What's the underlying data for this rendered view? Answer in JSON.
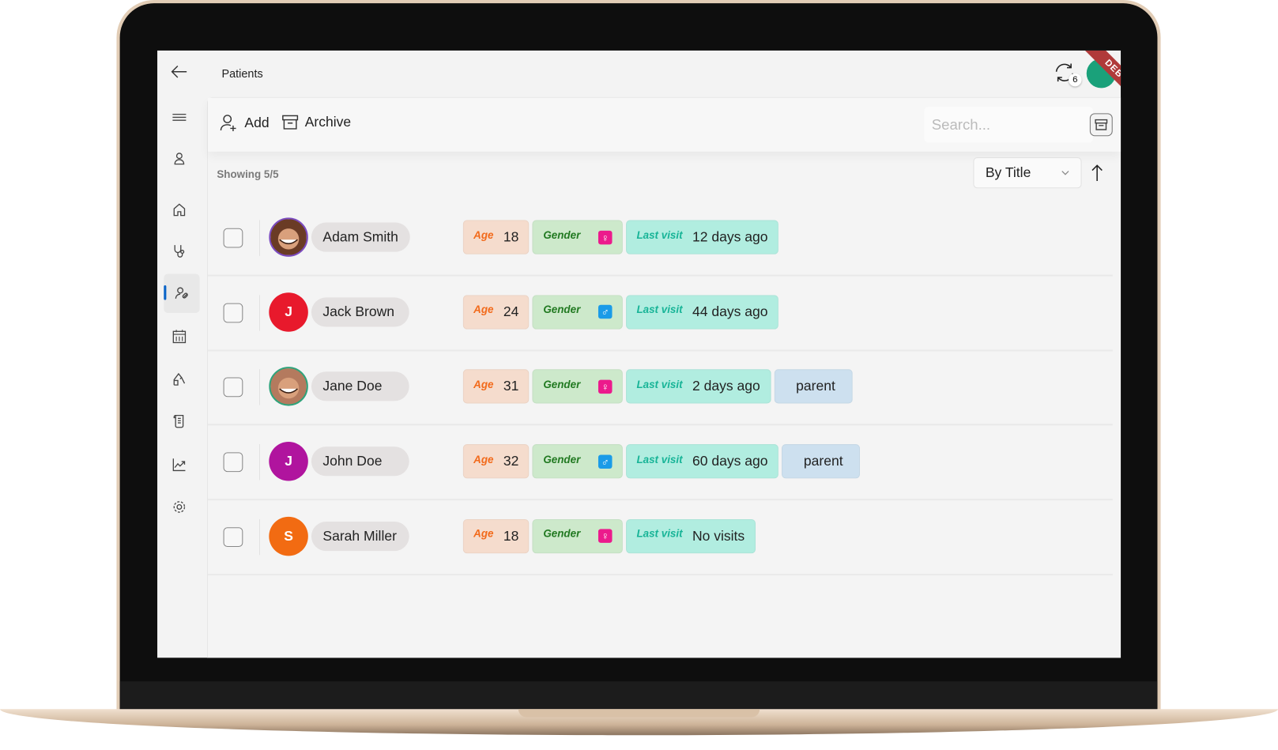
{
  "header": {
    "title": "Patients",
    "sync_count": "6",
    "debug_banner": "DEBUG"
  },
  "sidebar": {
    "items": [
      {
        "name": "menu",
        "icon": "menu-icon"
      },
      {
        "name": "profile",
        "icon": "person-icon"
      },
      {
        "name": "home",
        "icon": "home-icon"
      },
      {
        "name": "doctors",
        "icon": "stethoscope-icon"
      },
      {
        "name": "patients",
        "icon": "patients-icon",
        "active": true
      },
      {
        "name": "calendar",
        "icon": "calendar-icon"
      },
      {
        "name": "labwork",
        "icon": "lab-icon"
      },
      {
        "name": "prescriptions",
        "icon": "scroll-icon"
      },
      {
        "name": "statistics",
        "icon": "chart-icon"
      },
      {
        "name": "settings",
        "icon": "gear-icon"
      }
    ],
    "active_color": "#0a64c8"
  },
  "toolbar": {
    "add_label": "Add",
    "archive_label": "Archive",
    "search_placeholder": "Search..."
  },
  "list": {
    "showing": "Showing 5/5",
    "sort_by": "By Title",
    "age_label": "Age",
    "gender_label": "Gender",
    "last_visit_label": "Last visit",
    "rows": [
      {
        "name": "Adam Smith",
        "initial": "",
        "avatar": "photo",
        "avatar_color": "#6a3b25",
        "ring": "#7b4bbf",
        "age": "18",
        "gender": "female",
        "last_visit": "12 days ago",
        "tag": ""
      },
      {
        "name": "Jack Brown",
        "initial": "J",
        "avatar": "initial",
        "avatar_color": "#e8192c",
        "age": "24",
        "gender": "male",
        "last_visit": "44 days ago",
        "tag": ""
      },
      {
        "name": "Jane Doe",
        "initial": "",
        "avatar": "photo",
        "avatar_color": "#b47a5e",
        "ring": "#2ea37b",
        "age": "31",
        "gender": "female",
        "last_visit": "2 days ago",
        "tag": "parent"
      },
      {
        "name": "John Doe",
        "initial": "J",
        "avatar": "initial",
        "avatar_color": "#b0149e",
        "age": "32",
        "gender": "male",
        "last_visit": "60 days ago",
        "tag": "parent"
      },
      {
        "name": "Sarah Miller",
        "initial": "S",
        "avatar": "initial",
        "avatar_color": "#f26b12",
        "age": "18",
        "gender": "female",
        "last_visit": "No visits",
        "tag": ""
      }
    ]
  },
  "colors": {
    "female": "#ec1a8c",
    "male": "#1a9be8"
  }
}
